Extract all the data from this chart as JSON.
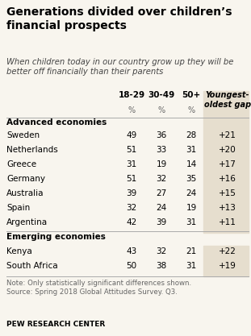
{
  "title": "Generations divided over children’s\nfinancial prospects",
  "subtitle": "When children today in our country grow up they will be\nbetter off financially than their parents",
  "col_headers": [
    "18-29",
    "30-49",
    "50+",
    "Youngest-\noldest gap"
  ],
  "section_headers": [
    "Advanced economies",
    "Emerging economies"
  ],
  "rows": [
    {
      "country": "Sweden",
      "v1": "49",
      "v2": "36",
      "v3": "28",
      "gap": "+21"
    },
    {
      "country": "Netherlands",
      "v1": "51",
      "v2": "33",
      "v3": "31",
      "gap": "+20"
    },
    {
      "country": "Greece",
      "v1": "31",
      "v2": "19",
      "v3": "14",
      "gap": "+17"
    },
    {
      "country": "Germany",
      "v1": "51",
      "v2": "32",
      "v3": "35",
      "gap": "+16"
    },
    {
      "country": "Australia",
      "v1": "39",
      "v2": "27",
      "v3": "24",
      "gap": "+15"
    },
    {
      "country": "Spain",
      "v1": "32",
      "v2": "24",
      "v3": "19",
      "gap": "+13"
    },
    {
      "country": "Argentina",
      "v1": "42",
      "v2": "39",
      "v3": "31",
      "gap": "+11"
    },
    {
      "country": "Kenya",
      "v1": "43",
      "v2": "32",
      "v3": "21",
      "gap": "+22"
    },
    {
      "country": "South Africa",
      "v1": "50",
      "v2": "38",
      "v3": "31",
      "gap": "+19"
    }
  ],
  "note": "Note: Only statistically significant differences shown.\nSource: Spring 2018 Global Attitudes Survey. Q3.",
  "footer": "PEW RESEARCH CENTER",
  "bg_color": "#f8f5ee",
  "gap_col_bg": "#e6dece",
  "title_color": "#000000",
  "note_color": "#666666"
}
